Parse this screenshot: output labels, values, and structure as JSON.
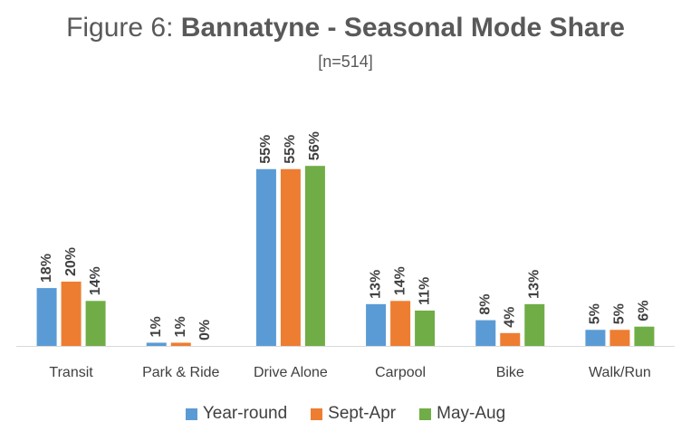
{
  "title_prefix": "Figure 6: ",
  "title_main": "Bannatyne - Seasonal Mode Share",
  "subtitle": "[n=514]",
  "chart_data": {
    "type": "bar",
    "categories": [
      "Transit",
      "Park & Ride",
      "Drive Alone",
      "Carpool",
      "Bike",
      "Walk/Run"
    ],
    "series": [
      {
        "name": "Year-round",
        "color": "#5B9BD5",
        "values": [
          18,
          1,
          55,
          13,
          8,
          5
        ],
        "labels": [
          "18%",
          "1%",
          "55%",
          "13%",
          "8%",
          "5%"
        ]
      },
      {
        "name": "Sept-Apr",
        "color": "#ED7D31",
        "values": [
          20,
          1,
          55,
          14,
          4,
          5
        ],
        "labels": [
          "20%",
          "1%",
          "55%",
          "14%",
          "4%",
          "5%"
        ]
      },
      {
        "name": "May-Aug",
        "color": "#70AD47",
        "values": [
          14,
          0,
          56,
          11,
          13,
          6
        ],
        "labels": [
          "14%",
          "0%",
          "56%",
          "11%",
          "13%",
          "6%"
        ]
      }
    ],
    "ylim": [
      0,
      56
    ],
    "grid": false,
    "legend_position": "bottom"
  }
}
